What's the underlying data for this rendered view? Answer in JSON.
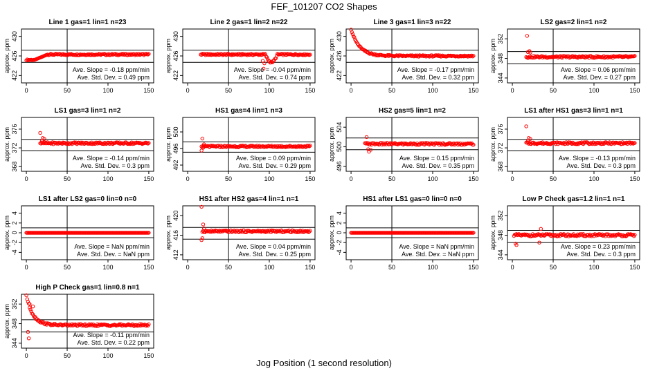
{
  "figure": {
    "title": "FEF_101207  CO2 Shapes",
    "xlabel": "Jog Position (1 second resolution)",
    "ylabel": "approx. ppm",
    "marker_color": "#ff0000",
    "line_color": "#000000",
    "slope_prefix": "Ave. Slope = ",
    "std_prefix": "Ave. Std. Dev. = "
  },
  "chart_data": [
    {
      "type": "scatter",
      "title": "Line 1 gas=1 lin=1 n=23",
      "ylim": [
        420.5,
        431.5
      ],
      "yticks": [
        422,
        426,
        430
      ],
      "xlim": [
        -6,
        156
      ],
      "xticks": [
        0,
        50,
        100,
        150
      ],
      "hlines": [
        427.2,
        424.7
      ],
      "vline": 50,
      "slope": "-0.18",
      "std": "0.49",
      "unit": "ppm/min",
      "shape": "rise",
      "base": 426.3,
      "start": 425.2,
      "settle": 26,
      "noise": 0.15,
      "outliers": []
    },
    {
      "type": "scatter",
      "title": "Line 2 gas=1 lin=2 n=22",
      "ylim": [
        420.5,
        431.5
      ],
      "yticks": [
        422,
        426,
        430
      ],
      "xlim": [
        -6,
        156
      ],
      "xticks": [
        0,
        50,
        100,
        150
      ],
      "hlines": [
        427.2,
        424.7
      ],
      "vline": 50,
      "slope": "-0.04",
      "std": "0.74",
      "unit": "ppm/min",
      "shape": "dip",
      "base": 426.3,
      "start": 426.0,
      "settle": 16,
      "noise": 0.15,
      "outliers": [
        [
          92,
          425.0
        ],
        [
          93,
          423.4
        ],
        [
          94,
          424.5
        ]
      ]
    },
    {
      "type": "scatter",
      "title": "Line 3 gas=1 lin=3 n=22",
      "ylim": [
        420.5,
        431.5
      ],
      "yticks": [
        422,
        426,
        430
      ],
      "xlim": [
        -6,
        156
      ],
      "xticks": [
        0,
        50,
        100,
        150
      ],
      "hlines": [
        427.2,
        424.7
      ],
      "vline": 50,
      "slope": "-0.17",
      "std": "0.32",
      "unit": "ppm/min",
      "shape": "decay",
      "base": 426.0,
      "start": 431.5,
      "settle": 10,
      "noise": 0.15,
      "outliers": []
    },
    {
      "type": "scatter",
      "title": "LS2 gas=2 lin=1 n=2",
      "ylim": [
        343,
        354
      ],
      "yticks": [
        344,
        348,
        352
      ],
      "xlim": [
        -6,
        156
      ],
      "xticks": [
        0,
        50,
        100,
        150
      ],
      "hlines": [
        349.4,
        346.9
      ],
      "vline": 50,
      "slope": "0.06",
      "std": "0.27",
      "unit": "ppm/min",
      "shape": "flat",
      "base": 348.3,
      "start": 349.2,
      "settle": 17,
      "noise": 0.2,
      "outliers": [
        [
          18,
          352.6
        ],
        [
          19,
          349.3
        ],
        [
          21,
          349.5
        ],
        [
          22,
          349.2
        ]
      ]
    },
    {
      "type": "scatter",
      "title": "LS1 gas=3 lin=1 n=2",
      "ylim": [
        367,
        378.5
      ],
      "yticks": [
        368,
        372,
        376
      ],
      "xlim": [
        -6,
        156
      ],
      "xticks": [
        0,
        50,
        100,
        150
      ],
      "hlines": [
        373.8,
        371.4
      ],
      "vline": 50,
      "slope": "-0.14",
      "std": "0.3",
      "unit": "ppm/min",
      "shape": "flat",
      "base": 373.0,
      "start": 373.8,
      "settle": 17,
      "noise": 0.2,
      "outliers": [
        [
          17,
          375.2
        ],
        [
          19,
          373.5
        ],
        [
          20,
          374.1
        ],
        [
          22,
          373.9
        ]
      ]
    },
    {
      "type": "scatter",
      "title": "HS1 gas=4 lin=1 n=3",
      "ylim": [
        490.5,
        503.5
      ],
      "yticks": [
        492,
        496,
        500
      ],
      "xlim": [
        -6,
        156
      ],
      "xticks": [
        0,
        50,
        100,
        150
      ],
      "hlines": [
        497.6,
        495.1
      ],
      "vline": 50,
      "slope": "0.09",
      "std": "0.29",
      "unit": "ppm/min",
      "shape": "flat",
      "base": 496.5,
      "start": 497.2,
      "settle": 17,
      "noise": 0.2,
      "outliers": [
        [
          18,
          498.4
        ],
        [
          17,
          495.5
        ],
        [
          19,
          496.2
        ],
        [
          20,
          497.0
        ]
      ]
    },
    {
      "type": "scatter",
      "title": "HS2 gas=5 lin=1 n=2",
      "ylim": [
        495,
        506
      ],
      "yticks": [
        496,
        500,
        504
      ],
      "xlim": [
        -6,
        156
      ],
      "xticks": [
        0,
        50,
        100,
        150
      ],
      "hlines": [
        501.8,
        499.4
      ],
      "vline": 50,
      "slope": "0.15",
      "std": "0.35",
      "unit": "ppm/min",
      "shape": "dip",
      "base": 500.6,
      "start": 501.5,
      "settle": 17,
      "noise": 0.2,
      "outliers": [
        [
          19,
          502.0
        ],
        [
          21,
          499.5
        ],
        [
          22,
          499.0
        ],
        [
          24,
          499.4
        ]
      ]
    },
    {
      "type": "scatter",
      "title": "LS1 after HS1 gas=3 lin=1 n=1",
      "ylim": [
        367,
        378.5
      ],
      "yticks": [
        368,
        372,
        376
      ],
      "xlim": [
        -6,
        156
      ],
      "xticks": [
        0,
        50,
        100,
        150
      ],
      "hlines": [
        373.8,
        371.4
      ],
      "vline": 50,
      "slope": "-0.13",
      "std": "0.3",
      "unit": "ppm/min",
      "shape": "flat",
      "base": 373.0,
      "start": 373.8,
      "settle": 17,
      "noise": 0.2,
      "outliers": [
        [
          17,
          376.6
        ],
        [
          19,
          373.5
        ],
        [
          20,
          374.1
        ],
        [
          22,
          373.9
        ]
      ]
    },
    {
      "type": "scatter",
      "title": "LS1 after LS2 gas=0 lin=0 n=0",
      "ylim": [
        -5.5,
        5.5
      ],
      "yticks": [
        -4,
        -2,
        0,
        2,
        4
      ],
      "xlim": [
        -6,
        156
      ],
      "xticks": [
        0,
        50,
        100,
        150
      ],
      "hlines": [
        1.0,
        -1.0
      ],
      "vline": 50,
      "slope": "NaN",
      "std": "NaN",
      "unit": "ppm/min",
      "shape": "zero",
      "base": 0,
      "start": 0,
      "settle": 0,
      "noise": 0,
      "outliers": []
    },
    {
      "type": "scatter",
      "title": "HS1 after HS2 gas=4 lin=1 n=1",
      "ylim": [
        411,
        422
      ],
      "yticks": [
        412,
        416,
        420
      ],
      "xlim": [
        -6,
        156
      ],
      "xticks": [
        0,
        50,
        100,
        150
      ],
      "hlines": [
        417.6,
        415.2
      ],
      "vline": 50,
      "slope": "0.04",
      "std": "0.25",
      "unit": "ppm/min",
      "shape": "flat",
      "base": 416.8,
      "start": 417.8,
      "settle": 18,
      "noise": 0.2,
      "outliers": [
        [
          17,
          421.8
        ],
        [
          18,
          415.4
        ],
        [
          17,
          415.0
        ],
        [
          19,
          418.2
        ],
        [
          20,
          417.4
        ]
      ]
    },
    {
      "type": "scatter",
      "title": "HS1 after LS1 gas=0 lin=0 n=0",
      "ylim": [
        -5.5,
        5.5
      ],
      "yticks": [
        -4,
        -2,
        0,
        2,
        4
      ],
      "xlim": [
        -6,
        156
      ],
      "xticks": [
        0,
        50,
        100,
        150
      ],
      "hlines": [
        1.0,
        -1.0
      ],
      "vline": 50,
      "slope": "NaN",
      "std": "NaN",
      "unit": "ppm/min",
      "shape": "zero",
      "base": 0,
      "start": 0,
      "settle": 0,
      "noise": 0,
      "outliers": []
    },
    {
      "type": "scatter",
      "title": "Low P Check gas=1.2 lin=1 n=1",
      "ylim": [
        343,
        354
      ],
      "yticks": [
        344,
        348,
        352
      ],
      "xlim": [
        -6,
        156
      ],
      "xticks": [
        0,
        50,
        100,
        150
      ],
      "hlines": [
        349.0,
        346.5
      ],
      "vline": 50,
      "slope": "0.23",
      "std": "0.3",
      "unit": "ppm/min",
      "shape": "flat",
      "base": 348.0,
      "start": 348.0,
      "settle": 2,
      "noise": 0.25,
      "outliers": [
        [
          4,
          346.3
        ],
        [
          5,
          346.0
        ],
        [
          33,
          346.5
        ],
        [
          35,
          349.3
        ]
      ]
    },
    {
      "type": "scatter",
      "title": "High P Check gas=1 lin=0.8 n=1",
      "ylim": [
        343,
        354
      ],
      "yticks": [
        344,
        348,
        352
      ],
      "xlim": [
        -6,
        156
      ],
      "xticks": [
        0,
        50,
        100,
        150
      ],
      "hlines": [
        348.8,
        346.3
      ],
      "vline": 50,
      "slope": "-0.11",
      "std": "0.22",
      "unit": "ppm/min",
      "shape": "decay",
      "base": 347.7,
      "start": 353.8,
      "settle": 8,
      "noise": 0.2,
      "outliers": [
        [
          2,
          346.3
        ],
        [
          3,
          345.0
        ],
        [
          4,
          352.0
        ],
        [
          8,
          351.5
        ]
      ]
    }
  ]
}
